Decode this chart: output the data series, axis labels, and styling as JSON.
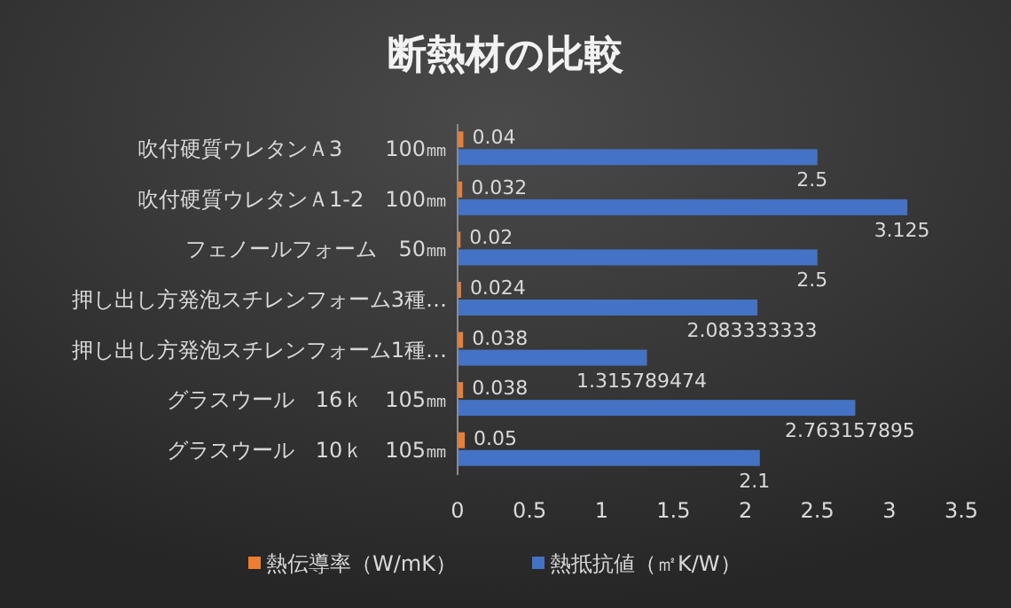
{
  "chart_data": {
    "type": "bar",
    "orientation": "horizontal",
    "title": "断熱材の比較",
    "categories": [
      "吹付硬質ウレタンＡ3　　100㎜",
      "吹付硬質ウレタンＡ1-2　100㎜",
      "フェノールフォーム　50㎜",
      "押し出し方発泡スチレンフォーム3種…",
      "押し出し方発泡スチレンフォーム1種…",
      "グラスウール　16ｋ　105㎜",
      "グラスウール　10ｋ　105㎜"
    ],
    "series": [
      {
        "name": "熱伝導率（W/mK）",
        "color": "#ed7d31",
        "values": [
          0.04,
          0.032,
          0.02,
          0.024,
          0.038,
          0.038,
          0.05
        ]
      },
      {
        "name": "熱抵抗値（㎡K/W）",
        "color": "#4472c4",
        "values": [
          2.5,
          3.125,
          2.5,
          2.083333333,
          1.315789474,
          2.763157895,
          2.1
        ]
      }
    ],
    "xlim": [
      0,
      3.5
    ],
    "xticks": [
      0,
      0.5,
      1,
      1.5,
      2,
      2.5,
      3,
      3.5
    ],
    "data_labels": true,
    "legend": "bottom",
    "grid": false
  }
}
